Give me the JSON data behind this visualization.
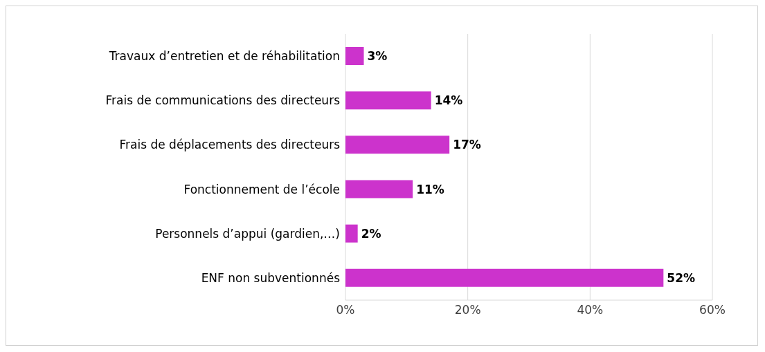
{
  "chart_data": {
    "type": "bar",
    "orientation": "horizontal",
    "categories": [
      "Travaux d’entretien et de réhabilitation",
      "Frais de communications des directeurs",
      "Frais de déplacements des directeurs",
      "Fonctionnement de l’école",
      "Personnels d’appui (gardien,…)",
      "ENF non subventionnés"
    ],
    "values": [
      3,
      14,
      17,
      11,
      2,
      52
    ],
    "value_labels": [
      "3%",
      "14%",
      "17%",
      "11%",
      "2%",
      "52%"
    ],
    "color": "#cc33cc",
    "xlim": [
      0,
      60
    ],
    "xticks": [
      {
        "value": 0,
        "label": "0%"
      },
      {
        "value": 20,
        "label": "20%"
      },
      {
        "value": 40,
        "label": "40%"
      },
      {
        "value": 60,
        "label": "60%"
      }
    ],
    "grid": "x"
  }
}
